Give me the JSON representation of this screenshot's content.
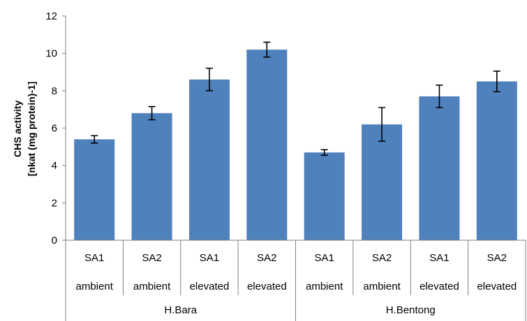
{
  "chart_data": {
    "type": "bar",
    "title": "",
    "ylabel_line1": "CHS activity",
    "ylabel_line2": "[nkat (mg protein)-1]",
    "ylim": [
      0,
      12
    ],
    "yticks": [
      "0",
      "2",
      "4",
      "6",
      "8",
      "10",
      "12"
    ],
    "bar_color": "#4f81bd",
    "grid": false,
    "categories": [
      {
        "sa": "SA1",
        "condition": "ambient",
        "group": "H.Bara"
      },
      {
        "sa": "SA2",
        "condition": "ambient",
        "group": "H.Bara"
      },
      {
        "sa": "SA1",
        "condition": "elevated",
        "group": "H.Bara"
      },
      {
        "sa": "SA2",
        "condition": "elevated",
        "group": "H.Bara"
      },
      {
        "sa": "SA1",
        "condition": "ambient",
        "group": "H.Bentong"
      },
      {
        "sa": "SA2",
        "condition": "ambient",
        "group": "H.Bentong"
      },
      {
        "sa": "SA1",
        "condition": "elevated",
        "group": "H.Bentong"
      },
      {
        "sa": "SA2",
        "condition": "elevated",
        "group": "H.Bentong"
      }
    ],
    "values": [
      5.4,
      6.8,
      8.6,
      10.2,
      4.7,
      6.2,
      7.7,
      8.5
    ],
    "errors": [
      0.2,
      0.35,
      0.6,
      0.4,
      0.15,
      0.9,
      0.6,
      0.55
    ],
    "groups": [
      "H.Bara",
      "H.Bentong"
    ]
  }
}
